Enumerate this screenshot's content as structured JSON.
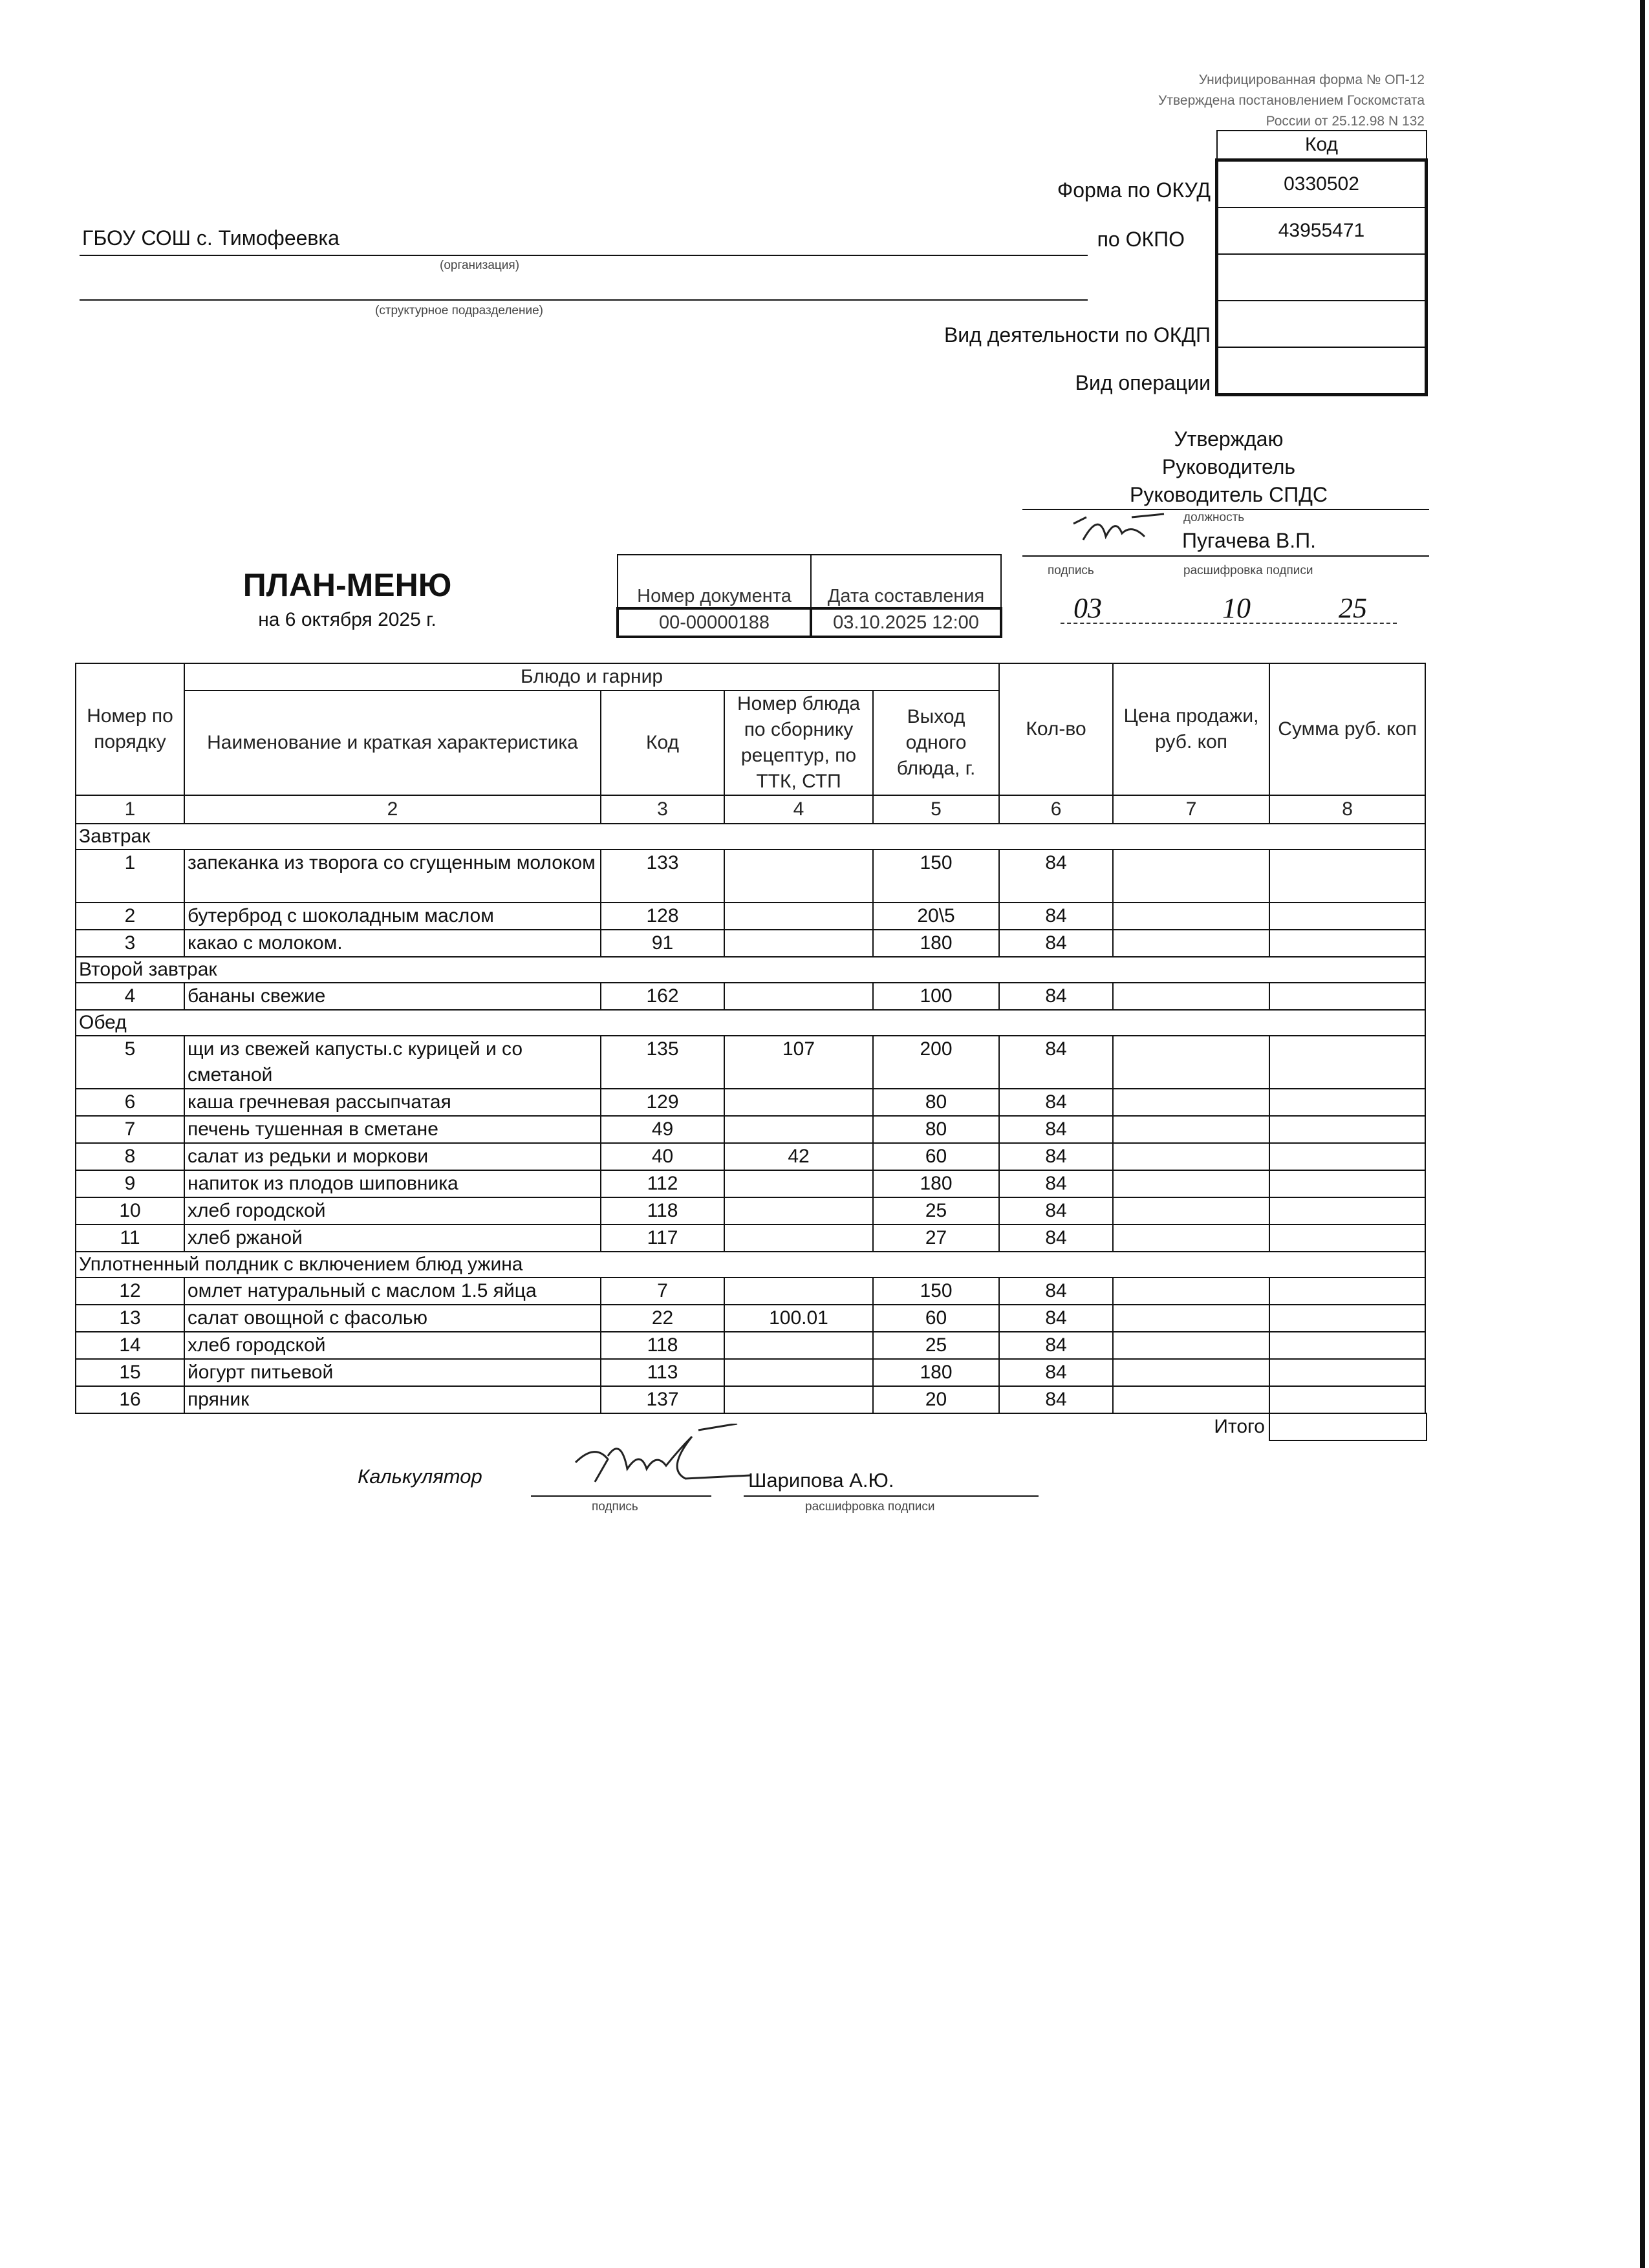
{
  "form_header": {
    "line1": "Унифицированная форма № ОП-12",
    "line2": "Утверждена постановлением Госкомстата",
    "line3": "России от 25.12.98 N 132"
  },
  "codes": {
    "header": "Код",
    "okud_label": "Форма по ОКУД",
    "okud_value": "0330502",
    "okpo_label": "по ОКПО",
    "okpo_value": "43955471",
    "okdp_label": "Вид деятельности по ОКДП",
    "okdp_value": "",
    "operation_label": "Вид операции",
    "operation_value": ""
  },
  "organization": {
    "name": "ГБОУ СОШ с. Тимофеевка",
    "org_caption": "(организация)",
    "subdivision_caption": "(структурное подразделение)"
  },
  "approval": {
    "approve": "Утверждаю",
    "title1": "Руководитель",
    "position": "Руководитель СПДС",
    "position_caption": "должность",
    "name": "Пугачева В.П.",
    "signature_caption": "подпись",
    "decode_caption": "расшифровка подписи",
    "date_day": "03",
    "date_month": "10",
    "date_year": "25"
  },
  "title": {
    "main": "ПЛАН-МЕНЮ",
    "date": "на 6 октября 2025 г."
  },
  "document": {
    "number_label": "Номер документа",
    "date_label": "Дата составления",
    "number_value": "00-00000188",
    "date_value": "03.10.2025 12:00"
  },
  "table": {
    "headers": {
      "num": "Номер по порядку",
      "group": "Блюдо и гарнир",
      "name": "Наименование и краткая характеристика",
      "code": "Код",
      "recipe": "Номер блюда по сборнику рецептур, по ТТК, СТП",
      "yield": "Выход одного блюда, г.",
      "qty": "Кол-во",
      "price": "Цена продажи, руб. коп",
      "sum": "Сумма руб. коп"
    },
    "col_numbers": [
      "1",
      "2",
      "3",
      "4",
      "5",
      "6",
      "7",
      "8"
    ],
    "sections": [
      {
        "title": "Завтрак",
        "rows": [
          {
            "n": "1",
            "name": "запеканка из творога со сгущенным молоком",
            "code": "133",
            "recipe": "",
            "yield": "150",
            "qty": "84",
            "price": "",
            "sum": "",
            "tall": true
          },
          {
            "n": "2",
            "name": "бутерброд с шоколадным маслом",
            "code": "128",
            "recipe": "",
            "yield": "20\\5",
            "qty": "84",
            "price": "",
            "sum": ""
          },
          {
            "n": "3",
            "name": "какао с молоком.",
            "code": "91",
            "recipe": "",
            "yield": "180",
            "qty": "84",
            "price": "",
            "sum": ""
          }
        ]
      },
      {
        "title": "Второй завтрак",
        "rows": [
          {
            "n": "4",
            "name": "бананы свежие",
            "code": "162",
            "recipe": "",
            "yield": "100",
            "qty": "84",
            "price": "",
            "sum": ""
          }
        ]
      },
      {
        "title": "Обед",
        "rows": [
          {
            "n": "5",
            "name": "щи из свежей капусты.с курицей и со сметаной",
            "code": "135",
            "recipe": "107",
            "yield": "200",
            "qty": "84",
            "price": "",
            "sum": "",
            "tall": true
          },
          {
            "n": "6",
            "name": "каша гречневая рассыпчатая",
            "code": "129",
            "recipe": "",
            "yield": "80",
            "qty": "84",
            "price": "",
            "sum": ""
          },
          {
            "n": "7",
            "name": "печень тушенная в сметане",
            "code": "49",
            "recipe": "",
            "yield": "80",
            "qty": "84",
            "price": "",
            "sum": ""
          },
          {
            "n": "8",
            "name": "салат из редьки и моркови",
            "code": "40",
            "recipe": "42",
            "yield": "60",
            "qty": "84",
            "price": "",
            "sum": ""
          },
          {
            "n": "9",
            "name": "напиток из плодов шиповника",
            "code": "112",
            "recipe": "",
            "yield": "180",
            "qty": "84",
            "price": "",
            "sum": ""
          },
          {
            "n": "10",
            "name": "хлеб городской",
            "code": "118",
            "recipe": "",
            "yield": "25",
            "qty": "84",
            "price": "",
            "sum": ""
          },
          {
            "n": "11",
            "name": "хлеб ржаной",
            "code": "117",
            "recipe": "",
            "yield": "27",
            "qty": "84",
            "price": "",
            "sum": ""
          }
        ]
      },
      {
        "title": "Уплотненный полдник с включением блюд ужина",
        "rows": [
          {
            "n": "12",
            "name": "омлет натуральный с маслом 1.5 яйца",
            "code": "7",
            "recipe": "",
            "yield": "150",
            "qty": "84",
            "price": "",
            "sum": ""
          },
          {
            "n": "13",
            "name": "салат овощной с фасолью",
            "code": "22",
            "recipe": "100.01",
            "yield": "60",
            "qty": "84",
            "price": "",
            "sum": ""
          },
          {
            "n": "14",
            "name": "хлеб городской",
            "code": "118",
            "recipe": "",
            "yield": "25",
            "qty": "84",
            "price": "",
            "sum": ""
          },
          {
            "n": "15",
            "name": "йогурт питьевой",
            "code": "113",
            "recipe": "",
            "yield": "180",
            "qty": "84",
            "price": "",
            "sum": ""
          },
          {
            "n": "16",
            "name": "пряник",
            "code": "137",
            "recipe": "",
            "yield": "20",
            "qty": "84",
            "price": "",
            "sum": ""
          }
        ]
      }
    ],
    "total_label": "Итого",
    "total_value": ""
  },
  "footer": {
    "role": "Калькулятор",
    "name": "Шарипова А.Ю.",
    "signature_caption": "подпись",
    "decode_caption": "расшифровка подписи"
  }
}
